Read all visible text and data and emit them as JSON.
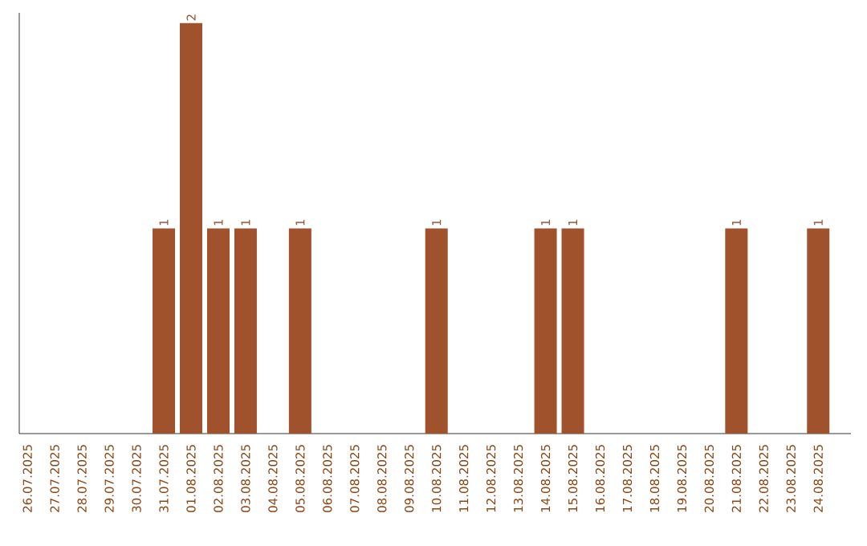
{
  "chart_data": {
    "type": "bar",
    "categories": [
      "26.07.2025",
      "27.07.2025",
      "28.07.2025",
      "29.07.2025",
      "30.07.2025",
      "31.07.2025",
      "01.08.2025",
      "02.08.2025",
      "03.08.2025",
      "04.08.2025",
      "05.08.2025",
      "06.08.2025",
      "07.08.2025",
      "08.08.2025",
      "09.08.2025",
      "10.08.2025",
      "11.08.2025",
      "12.08.2025",
      "13.08.2025",
      "14.08.2025",
      "15.08.2025",
      "16.08.2025",
      "17.08.2025",
      "18.08.2025",
      "19.08.2025",
      "20.08.2025",
      "21.08.2025",
      "22.08.2025",
      "23.08.2025",
      "24.08.2025"
    ],
    "values": [
      null,
      null,
      null,
      null,
      null,
      1,
      2,
      1,
      1,
      null,
      1,
      null,
      null,
      null,
      null,
      1,
      null,
      null,
      null,
      1,
      1,
      null,
      null,
      null,
      null,
      null,
      1,
      null,
      null,
      1
    ],
    "color": "#a0522d",
    "ylim": [
      0,
      2.05
    ],
    "data_labels": true,
    "tick_labels": "x"
  }
}
